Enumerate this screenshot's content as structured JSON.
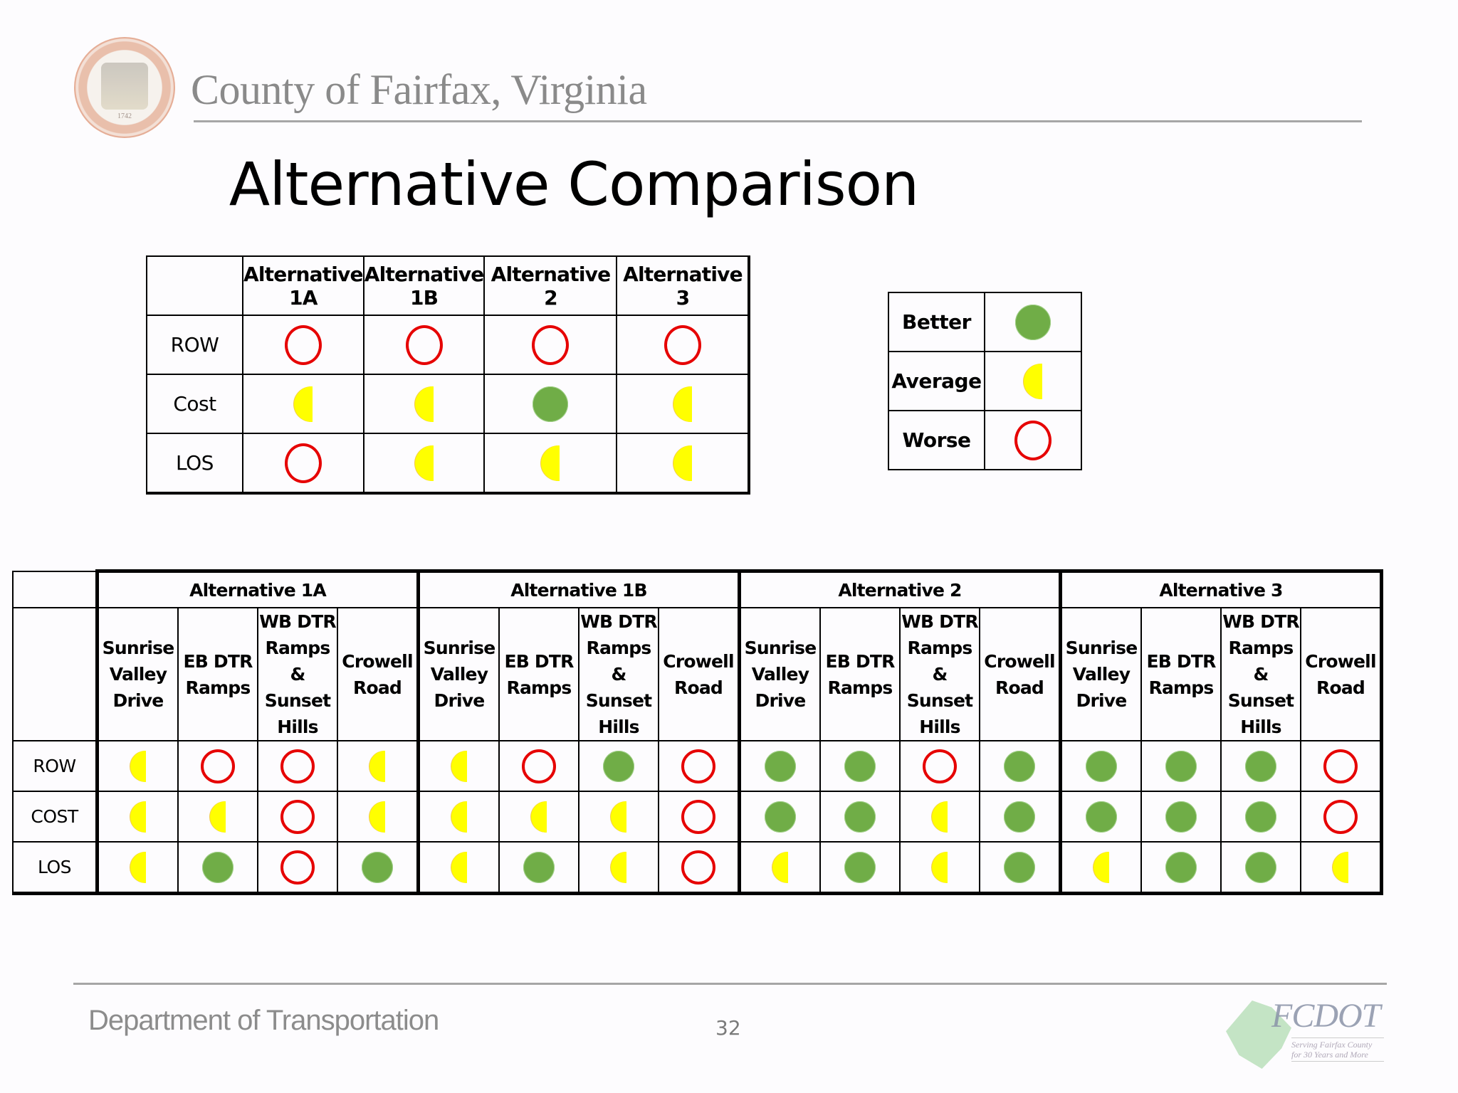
{
  "header": {
    "organization": "County of Fairfax, Virginia",
    "seal_year": "1742",
    "seal_icon": "county-seal-icon"
  },
  "title": "Alternative Comparison",
  "symbols": {
    "better": {
      "label": "Better",
      "icon": "filled-green-circle-icon",
      "color": "#70ad47"
    },
    "average": {
      "label": "Average",
      "icon": "yellow-half-circle-icon",
      "color": "#ffff00"
    },
    "worse": {
      "label": "Worse",
      "icon": "red-hollow-circle-icon",
      "color": "#e60000"
    }
  },
  "summary_table": {
    "columns": [
      "Alternative 1A",
      "Alternative 1B",
      "Alternative 2",
      "Alternative 3"
    ],
    "rows": [
      {
        "label": "ROW",
        "ratings": [
          "worse",
          "worse",
          "worse",
          "worse"
        ]
      },
      {
        "label": "Cost",
        "ratings": [
          "average",
          "average",
          "better",
          "average"
        ]
      },
      {
        "label": "LOS",
        "ratings": [
          "worse",
          "average",
          "average",
          "average"
        ]
      }
    ]
  },
  "legend": {
    "rows": [
      {
        "label": "Better",
        "rating": "better"
      },
      {
        "label": "Average",
        "rating": "average"
      },
      {
        "label": "Worse",
        "rating": "worse"
      }
    ]
  },
  "detail_table": {
    "groups": [
      "Alternative 1A",
      "Alternative 1B",
      "Alternative 2",
      "Alternative 3"
    ],
    "locations": [
      [
        "Sunrise",
        "Valley",
        "Drive"
      ],
      [
        "EB DTR",
        "Ramps"
      ],
      [
        "WB DTR",
        "Ramps &",
        "Sunset",
        "Hills"
      ],
      [
        "Crowell",
        "Road"
      ]
    ],
    "rows": [
      {
        "label": "ROW",
        "ratings": [
          [
            "average",
            "worse",
            "worse",
            "average"
          ],
          [
            "average",
            "worse",
            "better",
            "worse"
          ],
          [
            "better",
            "better",
            "worse",
            "better"
          ],
          [
            "better",
            "better",
            "better",
            "worse"
          ]
        ]
      },
      {
        "label": "COST",
        "ratings": [
          [
            "average",
            "average",
            "worse",
            "average"
          ],
          [
            "average",
            "average",
            "average",
            "worse"
          ],
          [
            "better",
            "better",
            "average",
            "better"
          ],
          [
            "better",
            "better",
            "better",
            "worse"
          ]
        ]
      },
      {
        "label": "LOS",
        "ratings": [
          [
            "average",
            "better",
            "worse",
            "better"
          ],
          [
            "average",
            "better",
            "average",
            "worse"
          ],
          [
            "average",
            "better",
            "average",
            "better"
          ],
          [
            "average",
            "better",
            "better",
            "average"
          ]
        ]
      }
    ]
  },
  "footer": {
    "department": "Department of Transportation",
    "page_number": "32",
    "logo_text": "FCDOT",
    "logo_tagline": "Serving Fairfax County for 30 Years and More"
  }
}
